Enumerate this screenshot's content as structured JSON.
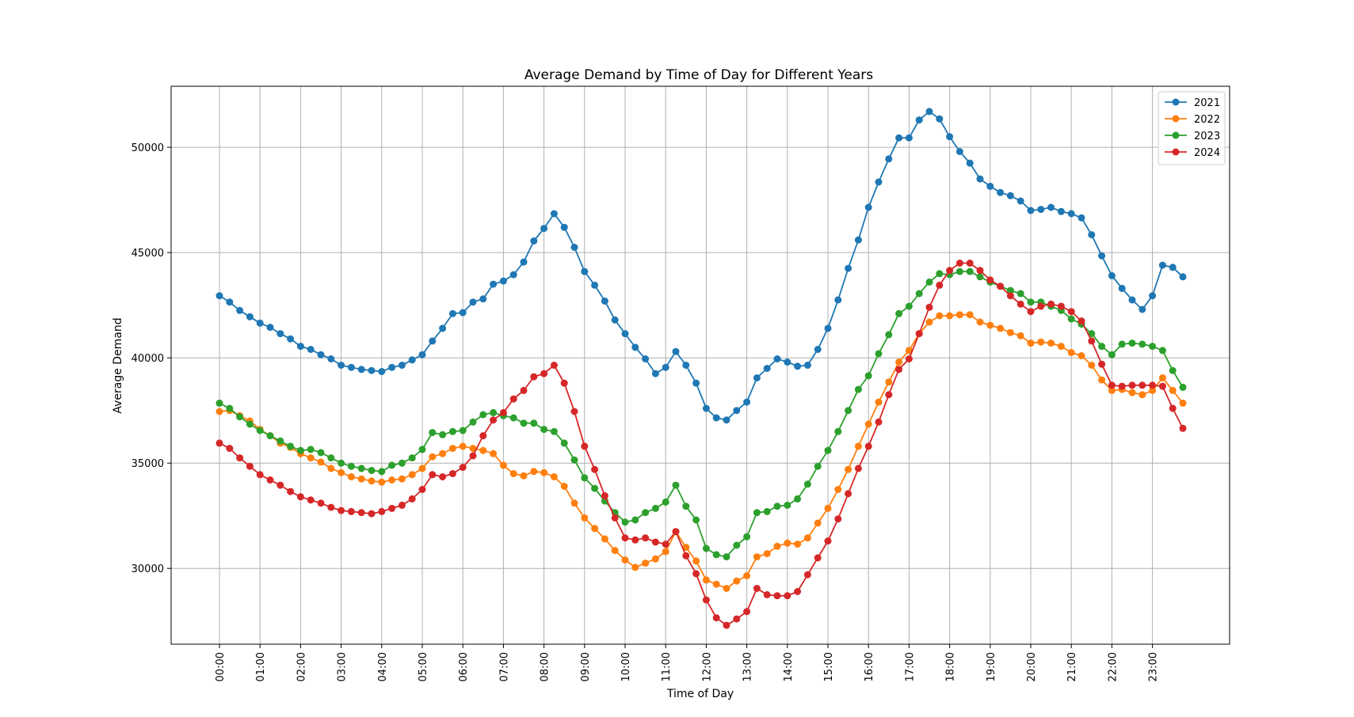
{
  "chart_data": {
    "type": "line",
    "title": "Average Demand by Time of Day for Different Years",
    "xlabel": "Time of Day",
    "ylabel": "Average Demand",
    "x_tick_labels": [
      "00:00",
      "01:00",
      "02:00",
      "03:00",
      "04:00",
      "05:00",
      "06:00",
      "07:00",
      "08:00",
      "09:00",
      "10:00",
      "11:00",
      "12:00",
      "13:00",
      "14:00",
      "15:00",
      "16:00",
      "17:00",
      "18:00",
      "19:00",
      "20:00",
      "21:00",
      "22:00",
      "23:00"
    ],
    "y_ticks": [
      30000,
      35000,
      40000,
      45000,
      50000
    ],
    "ylim": [
      26400,
      52900
    ],
    "grid": true,
    "legend_position": "top-right",
    "points_per_hour": 4,
    "series": [
      {
        "name": "2021",
        "color": "#1f77b4",
        "values": [
          42950,
          42650,
          42250,
          41950,
          41650,
          41450,
          41150,
          40900,
          40550,
          40400,
          40150,
          39950,
          39650,
          39550,
          39450,
          39400,
          39350,
          39550,
          39650,
          39900,
          40150,
          40800,
          41400,
          42100,
          42150,
          42650,
          42800,
          43500,
          43650,
          43950,
          44550,
          45550,
          46150,
          46850,
          46200,
          45250,
          44100,
          43450,
          42700,
          41800,
          41150,
          40500,
          39950,
          39250,
          39550,
          40300,
          39650,
          38800,
          37600,
          37150,
          37050,
          37500,
          37900,
          39050,
          39500,
          39950,
          39800,
          39600,
          39650,
          40400,
          41400,
          42750,
          44250,
          45600,
          47150,
          48350,
          49450,
          50450,
          50450,
          51300,
          51700,
          51350,
          50500,
          49800,
          49250,
          48500,
          48150,
          47850,
          47700,
          47450,
          47000,
          47050,
          47150,
          46950,
          46850,
          46650,
          45850,
          44850,
          43900,
          43300,
          42750,
          42300,
          42950,
          44400,
          44300,
          43850
        ]
      },
      {
        "name": "2022",
        "color": "#ff7f0e",
        "values": [
          37450,
          37500,
          37250,
          37000,
          36600,
          36300,
          35950,
          35750,
          35450,
          35250,
          35050,
          34750,
          34550,
          34350,
          34250,
          34150,
          34100,
          34200,
          34250,
          34450,
          34750,
          35300,
          35450,
          35700,
          35800,
          35700,
          35600,
          35450,
          34900,
          34500,
          34400,
          34600,
          34550,
          34350,
          33900,
          33100,
          32400,
          31900,
          31400,
          30850,
          30400,
          30050,
          30250,
          30450,
          30800,
          31750,
          31000,
          30350,
          29450,
          29250,
          29050,
          29400,
          29650,
          30550,
          30700,
          31050,
          31200,
          31150,
          31450,
          32150,
          32850,
          33750,
          34700,
          35800,
          36850,
          37900,
          38850,
          39800,
          40350,
          41150,
          41700,
          42000,
          42000,
          42050,
          42050,
          41700,
          41550,
          41400,
          41200,
          41050,
          40700,
          40750,
          40700,
          40550,
          40250,
          40100,
          39650,
          38950,
          38450,
          38500,
          38350,
          38250,
          38450,
          39050,
          38450,
          37850
        ]
      },
      {
        "name": "2023",
        "color": "#2ca02c",
        "values": [
          37850,
          37600,
          37200,
          36850,
          36550,
          36300,
          36050,
          35800,
          35600,
          35650,
          35500,
          35250,
          35000,
          34850,
          34750,
          34650,
          34600,
          34900,
          35000,
          35250,
          35650,
          36450,
          36350,
          36500,
          36550,
          36950,
          37300,
          37400,
          37250,
          37150,
          36900,
          36900,
          36600,
          36500,
          35950,
          35150,
          34300,
          33800,
          33200,
          32650,
          32200,
          32300,
          32650,
          32850,
          33150,
          33950,
          32950,
          32300,
          30950,
          30650,
          30550,
          31100,
          31500,
          32650,
          32700,
          32950,
          33000,
          33300,
          34000,
          34850,
          35600,
          36500,
          37500,
          38500,
          39150,
          40200,
          41100,
          42100,
          42450,
          43050,
          43600,
          44000,
          43950,
          44100,
          44100,
          43850,
          43600,
          43400,
          43200,
          43050,
          42650,
          42650,
          42450,
          42250,
          41850,
          41600,
          41150,
          40550,
          40150,
          40650,
          40700,
          40650,
          40550,
          40350,
          39400,
          38600
        ]
      },
      {
        "name": "2024",
        "color": "#d62728",
        "values": [
          35950,
          35700,
          35250,
          34850,
          34450,
          34200,
          33950,
          33650,
          33400,
          33250,
          33100,
          32900,
          32750,
          32700,
          32650,
          32600,
          32700,
          32850,
          33000,
          33300,
          33750,
          34450,
          34350,
          34500,
          34800,
          35350,
          36300,
          37050,
          37400,
          38050,
          38450,
          39100,
          39250,
          39650,
          38800,
          37450,
          35800,
          34700,
          33450,
          32400,
          31450,
          31350,
          31450,
          31250,
          31150,
          31750,
          30600,
          29750,
          28500,
          27650,
          27300,
          27600,
          27950,
          29050,
          28750,
          28700,
          28700,
          28900,
          29700,
          30500,
          31300,
          32350,
          33550,
          34750,
          35800,
          36950,
          38250,
          39450,
          39950,
          41150,
          42400,
          43450,
          44150,
          44500,
          44500,
          44150,
          43700,
          43400,
          42950,
          42550,
          42200,
          42450,
          42550,
          42450,
          42200,
          41750,
          40800,
          39700,
          38700,
          38650,
          38700,
          38700,
          38700,
          38650,
          37600,
          36650
        ]
      }
    ]
  }
}
